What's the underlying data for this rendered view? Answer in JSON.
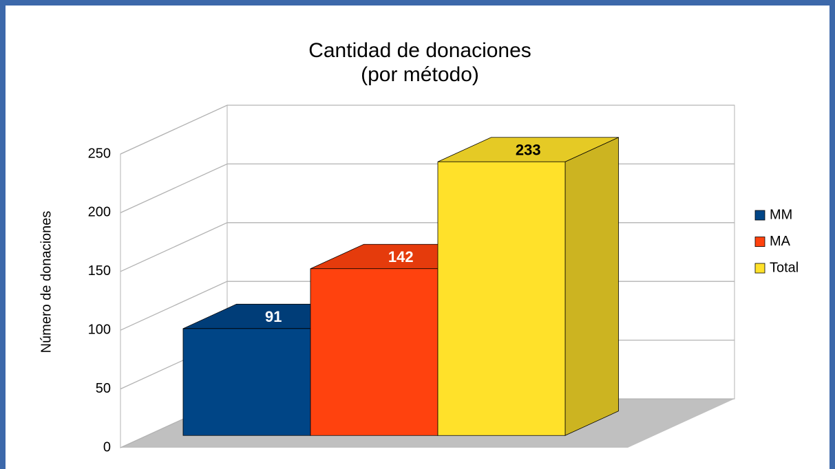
{
  "chart_data": {
    "type": "bar3d",
    "title": "Cantidad de donaciones",
    "subtitle": "(por método)",
    "y_label": "Número de donaciones",
    "categories": [
      null
    ],
    "series": [
      {
        "name": "MM",
        "color": "#004586",
        "values": [
          91
        ]
      },
      {
        "name": "MA",
        "color": "#ff420e",
        "values": [
          142
        ]
      },
      {
        "name": "Total",
        "color": "#ffe12a",
        "values": [
          233
        ]
      }
    ],
    "ylim": [
      0,
      250
    ],
    "yticks": [
      0,
      50,
      100,
      150,
      200,
      250
    ],
    "grid": true,
    "legend": "right"
  }
}
